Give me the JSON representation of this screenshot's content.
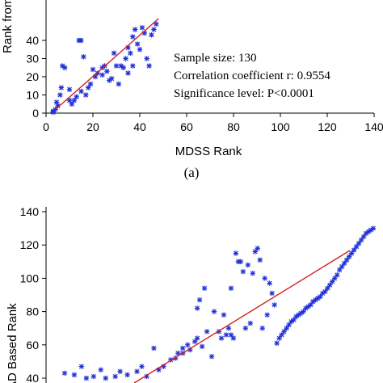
{
  "chart_data": [
    {
      "type": "scatter",
      "title": "",
      "xlabel": "MDSS Rank",
      "ylabel": "Rank from",
      "xlim": [
        0,
        140
      ],
      "ylim": [
        0,
        50
      ],
      "x_ticks": [
        0,
        20,
        40,
        60,
        80,
        100,
        120,
        140
      ],
      "y_ticks": [
        0,
        10,
        20,
        30,
        40
      ],
      "x_tick_labels": [
        "0",
        "20",
        "40",
        "60",
        "80",
        "100",
        "120",
        "140"
      ],
      "y_tick_labels": [
        "0",
        "10",
        "20",
        "30",
        "40"
      ],
      "grid": false,
      "marker_color": "#1f2fd6",
      "line_color": "#d42020",
      "trendline": [
        [
          4,
          2
        ],
        [
          48,
          52
        ]
      ],
      "annotations": [
        "Sample size: 130",
        "Correlation coefficient r: 0.9554",
        "Significance level: P<0.0001"
      ],
      "caption": "(a)",
      "points": [
        [
          3,
          0.5
        ],
        [
          3,
          1
        ],
        [
          4,
          2
        ],
        [
          4.5,
          6
        ],
        [
          5,
          4
        ],
        [
          6,
          10
        ],
        [
          6.5,
          14
        ],
        [
          7,
          26
        ],
        [
          8,
          25
        ],
        [
          10,
          7
        ],
        [
          10,
          13
        ],
        [
          11,
          5
        ],
        [
          12,
          7
        ],
        [
          13,
          9
        ],
        [
          14,
          40
        ],
        [
          15,
          40
        ],
        [
          15,
          12
        ],
        [
          16,
          31
        ],
        [
          17,
          10
        ],
        [
          18,
          14
        ],
        [
          19,
          16
        ],
        [
          20,
          24
        ],
        [
          21,
          20
        ],
        [
          22,
          22
        ],
        [
          24,
          21
        ],
        [
          24,
          25
        ],
        [
          25,
          26
        ],
        [
          26,
          23
        ],
        [
          27,
          18
        ],
        [
          28,
          19
        ],
        [
          29,
          33
        ],
        [
          30,
          26
        ],
        [
          31,
          16
        ],
        [
          32,
          26
        ],
        [
          33,
          25
        ],
        [
          34,
          30
        ],
        [
          35,
          22
        ],
        [
          35,
          36
        ],
        [
          36,
          33
        ],
        [
          37,
          26
        ],
        [
          37,
          42
        ],
        [
          38,
          46
        ],
        [
          39,
          38
        ],
        [
          40,
          35
        ],
        [
          41,
          47
        ],
        [
          42,
          44
        ],
        [
          43,
          30
        ],
        [
          44,
          26
        ],
        [
          45,
          43
        ],
        [
          46,
          46
        ],
        [
          47,
          49
        ]
      ]
    },
    {
      "type": "scatter",
      "title": "",
      "xlabel": "",
      "ylabel": "CAD Based Rank",
      "ylim": [
        40,
        140
      ],
      "y_ticks": [
        40,
        60,
        80,
        100,
        120,
        140
      ],
      "y_tick_labels": [
        "40",
        "60",
        "80",
        "100",
        "120",
        "140"
      ],
      "grid": false,
      "marker_color": "#1f2fd6",
      "line_color": "#d42020",
      "trendline": [
        [
          40,
          40
        ],
        [
          136,
          116
        ]
      ],
      "points": [
        [
          12,
          43
        ],
        [
          16,
          42
        ],
        [
          19,
          47
        ],
        [
          21,
          40
        ],
        [
          24,
          41
        ],
        [
          27,
          45
        ],
        [
          29,
          40
        ],
        [
          33,
          41
        ],
        [
          35,
          44
        ],
        [
          38,
          42
        ],
        [
          42,
          44
        ],
        [
          44,
          47
        ],
        [
          46,
          41
        ],
        [
          49,
          58
        ],
        [
          51,
          45
        ],
        [
          53,
          47
        ],
        [
          56,
          51
        ],
        [
          58,
          52
        ],
        [
          59,
          55
        ],
        [
          61,
          55
        ],
        [
          61,
          58
        ],
        [
          63,
          60
        ],
        [
          64,
          57
        ],
        [
          66,
          62
        ],
        [
          67,
          64
        ],
        [
          67,
          82
        ],
        [
          68,
          87
        ],
        [
          69,
          59
        ],
        [
          70,
          94
        ],
        [
          71,
          68
        ],
        [
          73,
          53
        ],
        [
          74,
          80
        ],
        [
          76,
          68
        ],
        [
          77,
          64
        ],
        [
          78,
          78
        ],
        [
          79,
          66
        ],
        [
          80,
          70
        ],
        [
          81,
          66
        ],
        [
          81,
          94
        ],
        [
          82,
          64
        ],
        [
          83,
          115
        ],
        [
          84,
          110
        ],
        [
          85,
          110
        ],
        [
          86,
          104
        ],
        [
          87,
          70
        ],
        [
          88,
          108
        ],
        [
          89,
          73
        ],
        [
          90,
          103
        ],
        [
          91,
          116
        ],
        [
          92,
          118
        ],
        [
          93,
          111
        ],
        [
          94,
          70
        ],
        [
          95,
          100
        ],
        [
          96,
          78
        ],
        [
          97,
          97
        ],
        [
          98,
          91
        ],
        [
          99,
          84
        ],
        [
          100,
          61
        ],
        [
          101,
          64
        ],
        [
          102,
          66
        ],
        [
          103,
          68
        ],
        [
          104,
          70
        ],
        [
          105,
          72
        ],
        [
          106,
          74
        ],
        [
          107,
          75
        ],
        [
          108,
          77
        ],
        [
          109,
          78
        ],
        [
          110,
          79
        ],
        [
          111,
          80
        ],
        [
          112,
          82
        ],
        [
          113,
          83
        ],
        [
          114,
          84
        ],
        [
          115,
          86
        ],
        [
          116,
          87
        ],
        [
          117,
          88
        ],
        [
          118,
          89
        ],
        [
          119,
          91
        ],
        [
          120,
          92
        ],
        [
          121,
          94
        ],
        [
          122,
          96
        ],
        [
          123,
          98
        ],
        [
          124,
          100
        ],
        [
          125,
          102
        ],
        [
          126,
          105
        ],
        [
          127,
          107
        ],
        [
          128,
          109
        ],
        [
          129,
          111
        ],
        [
          130,
          113
        ],
        [
          131,
          115
        ],
        [
          132,
          117
        ],
        [
          133,
          119
        ],
        [
          134,
          121
        ],
        [
          135,
          123
        ],
        [
          136,
          125
        ],
        [
          137,
          127
        ],
        [
          138,
          128
        ],
        [
          139,
          129
        ],
        [
          140,
          130
        ]
      ]
    }
  ]
}
